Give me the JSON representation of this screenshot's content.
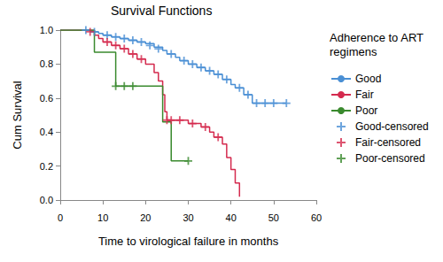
{
  "chart_data": {
    "type": "line",
    "title": "Survival Functions",
    "x_label": "Time to virological failure in months",
    "y_label": "Cum Survival",
    "legend_title": "Adherence to ART regimens",
    "legend": "right",
    "grid": false,
    "xlim": [
      0,
      60
    ],
    "xticks": [
      0,
      10,
      20,
      30,
      40,
      50,
      60
    ],
    "ylim": [
      0,
      1
    ],
    "yticks": [
      {
        "value": 0,
        "label": "0.0"
      },
      0.2,
      0.4,
      0.6,
      0.8,
      {
        "value": 1,
        "label": "1.0"
      }
    ],
    "series": [
      {
        "name": "Good",
        "type": "line",
        "line_style": "step",
        "color": "#4a8fd4",
        "x": [
          0,
          7,
          9,
          10,
          12,
          14,
          16,
          18,
          20,
          22,
          24,
          25,
          27,
          28,
          30,
          32,
          34,
          36,
          38,
          40,
          41,
          43,
          45,
          53
        ],
        "values": [
          1,
          0.99,
          0.98,
          0.97,
          0.96,
          0.95,
          0.94,
          0.93,
          0.92,
          0.9,
          0.88,
          0.86,
          0.84,
          0.82,
          0.8,
          0.78,
          0.76,
          0.74,
          0.71,
          0.68,
          0.66,
          0.62,
          0.57,
          0.57
        ]
      },
      {
        "name": "Fair",
        "type": "line",
        "line_style": "step",
        "color": "#d42a4e",
        "x": [
          0,
          8,
          9,
          10,
          12,
          14,
          16,
          18,
          20,
          22,
          23,
          24,
          24.5,
          25,
          30,
          33,
          35,
          36,
          38,
          39,
          40,
          41,
          42
        ],
        "values": [
          1,
          0.97,
          0.95,
          0.93,
          0.91,
          0.89,
          0.86,
          0.83,
          0.8,
          0.75,
          0.7,
          0.62,
          0.52,
          0.47,
          0.45,
          0.43,
          0.4,
          0.37,
          0.33,
          0.25,
          0.18,
          0.1,
          0.02
        ]
      },
      {
        "name": "Poor",
        "type": "line",
        "line_style": "step",
        "color": "#3a8a2e",
        "x": [
          0,
          8,
          13,
          24,
          26,
          30
        ],
        "values": [
          1,
          0.87,
          0.67,
          0.46,
          0.23,
          0.23
        ]
      },
      {
        "name": "Good-censored",
        "type": "scatter",
        "marker": "plus",
        "color": "#4a8fd4",
        "x": [
          6,
          8,
          11,
          13,
          15,
          17,
          19,
          21,
          23,
          26,
          29,
          31,
          33,
          35,
          37,
          39,
          42,
          44,
          46,
          48,
          50,
          53
        ],
        "values": [
          1,
          0.99,
          0.97,
          0.96,
          0.95,
          0.94,
          0.93,
          0.91,
          0.89,
          0.86,
          0.82,
          0.8,
          0.78,
          0.76,
          0.74,
          0.71,
          0.66,
          0.62,
          0.57,
          0.57,
          0.57,
          0.57
        ]
      },
      {
        "name": "Fair-censored",
        "type": "scatter",
        "marker": "plus",
        "color": "#d42a4e",
        "x": [
          7,
          11,
          13,
          15,
          17,
          19,
          25,
          26,
          28,
          31,
          34,
          37
        ],
        "values": [
          0.99,
          0.93,
          0.91,
          0.89,
          0.86,
          0.83,
          0.47,
          0.47,
          0.47,
          0.45,
          0.43,
          0.37
        ]
      },
      {
        "name": "Poor-censored",
        "type": "scatter",
        "marker": "plus",
        "color": "#3a8a2e",
        "x": [
          13,
          15,
          17,
          30
        ],
        "values": [
          0.67,
          0.67,
          0.67,
          0.23
        ]
      }
    ]
  }
}
